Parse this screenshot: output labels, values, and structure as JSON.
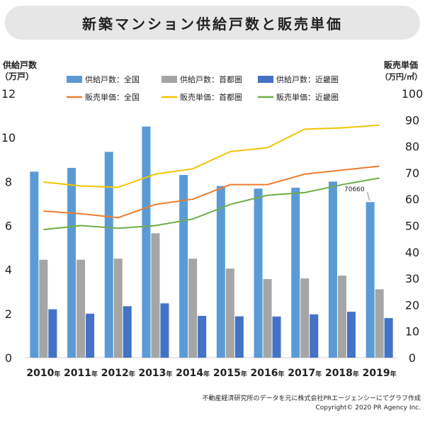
{
  "chart_data": {
    "type": "bar+line",
    "title": "新築マンション供給戸数と販売単価",
    "left_axis": {
      "label_line1": "供給戸数",
      "label_line2": "（万戸）",
      "ylim": [
        0,
        12
      ],
      "ticks": [
        0,
        2,
        4,
        6,
        8,
        10,
        12
      ]
    },
    "right_axis": {
      "label_line1": "販売単価",
      "label_line2": "（万円/㎡）",
      "ylim": [
        0,
        100
      ],
      "ticks": [
        0,
        10,
        20,
        30,
        40,
        50,
        60,
        70,
        80,
        90,
        100
      ]
    },
    "categories": [
      "2010",
      "2011",
      "2012",
      "2013",
      "2014",
      "2015",
      "2016",
      "2017",
      "2018",
      "2019"
    ],
    "year_suffix": "年",
    "bar_series": [
      {
        "name": "供給戸数：全国",
        "color": "#5b9bd5",
        "values": [
          8.45,
          8.62,
          9.35,
          10.5,
          8.3,
          7.8,
          7.68,
          7.72,
          8.0,
          7.07
        ]
      },
      {
        "name": "供給戸数：首都圏",
        "color": "#a5a5a5",
        "values": [
          4.45,
          4.45,
          4.5,
          5.65,
          4.5,
          4.05,
          3.57,
          3.6,
          3.73,
          3.11
        ]
      },
      {
        "name": "供給戸数：近畿圏",
        "color": "#4472c4",
        "values": [
          2.2,
          2.0,
          2.34,
          2.47,
          1.9,
          1.88,
          1.87,
          1.97,
          2.09,
          1.8
        ]
      }
    ],
    "line_series": [
      {
        "name": "販売単価：全国",
        "color": "#ed7d31",
        "values": [
          55.5,
          54.5,
          53.0,
          58.0,
          60.0,
          65.5,
          65.5,
          69.5,
          71.0,
          72.5
        ]
      },
      {
        "name": "販売単価：首都圏",
        "color": "#f2c500",
        "values": [
          66.5,
          65.0,
          64.5,
          69.5,
          71.5,
          78.0,
          79.5,
          86.5,
          87.0,
          88.0
        ]
      },
      {
        "name": "販売単価：近畿圏",
        "color": "#70ad47",
        "values": [
          48.5,
          50.0,
          49.0,
          50.0,
          52.5,
          58.0,
          61.5,
          62.5,
          65.5,
          68.0
        ]
      }
    ],
    "annotation": "70660",
    "legend_position": "top"
  },
  "footer": {
    "source": "不動産経済研究所のデータを元に株式会社PRエージェンシーにてグラフ作成",
    "copyright": "Copyright© 2020 PR Agency Inc."
  }
}
